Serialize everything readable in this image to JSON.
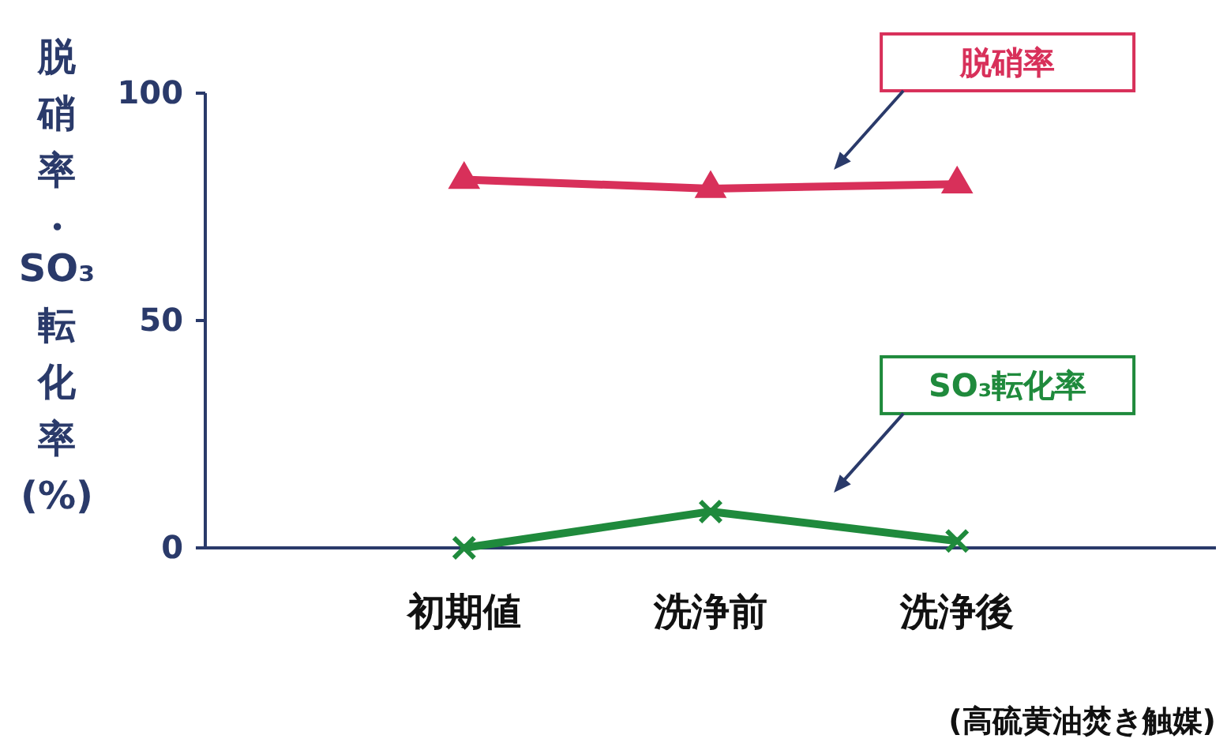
{
  "chart_data": {
    "type": "line",
    "ylabel": "脱硝率・SO₃転化率(%)",
    "categories": [
      "初期値",
      "洗浄前",
      "洗浄後"
    ],
    "series": [
      {
        "name": "脱硝率",
        "color": "#d8305a",
        "marker": "triangle",
        "values": [
          81,
          79,
          80
        ]
      },
      {
        "name": "SO₃転化率",
        "color": "#1f8a3c",
        "marker": "cross",
        "values": [
          0,
          8,
          1.5
        ]
      }
    ],
    "ylim": [
      0,
      100
    ],
    "yticks": [
      0,
      50,
      100
    ],
    "annotations": [
      "(高硫黄油焚き触媒)"
    ]
  }
}
